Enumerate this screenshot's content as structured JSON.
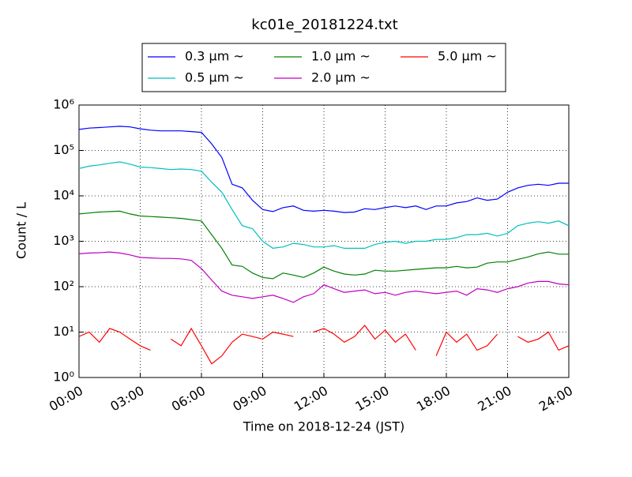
{
  "chart_data": {
    "type": "line",
    "title": "kc01e_20181224.txt",
    "xlabel": "Time on 2018-12-24 (JST)",
    "ylabel": "Count / L",
    "yscale": "log",
    "grid": true,
    "legend": "top",
    "xlim": [
      0,
      24
    ],
    "xticks": [
      {
        "value": 0,
        "label": "00:00"
      },
      {
        "value": 3,
        "label": "03:00"
      },
      {
        "value": 6,
        "label": "06:00"
      },
      {
        "value": 9,
        "label": "09:00"
      },
      {
        "value": 12,
        "label": "12:00"
      },
      {
        "value": 15,
        "label": "15:00"
      },
      {
        "value": 18,
        "label": "18:00"
      },
      {
        "value": 21,
        "label": "21:00"
      },
      {
        "value": 24,
        "label": "24:00"
      }
    ],
    "ylim": [
      1,
      1000000
    ],
    "yticks": [
      {
        "value": 1,
        "label": "10⁰"
      },
      {
        "value": 10,
        "label": "10¹"
      },
      {
        "value": 100,
        "label": "10²"
      },
      {
        "value": 1000,
        "label": "10³"
      },
      {
        "value": 10000,
        "label": "10⁴"
      },
      {
        "value": 100000,
        "label": "10⁵"
      },
      {
        "value": 1000000,
        "label": "10⁶"
      }
    ],
    "x": [
      0,
      0.5,
      1,
      1.5,
      2,
      2.5,
      3,
      3.5,
      4,
      4.5,
      5,
      5.5,
      6,
      6.5,
      7,
      7.5,
      8,
      8.5,
      9,
      9.5,
      10,
      10.5,
      11,
      11.5,
      12,
      12.5,
      13,
      13.5,
      14,
      14.5,
      15,
      15.5,
      16,
      16.5,
      17,
      17.5,
      18,
      18.5,
      19,
      19.5,
      20,
      20.5,
      21,
      21.5,
      22,
      22.5,
      23,
      23.5,
      24
    ],
    "series": [
      {
        "name": "0.3 μm ~",
        "color": "#0000ff",
        "values": [
          290000,
          310000,
          320000,
          330000,
          340000,
          330000,
          300000,
          280000,
          270000,
          270000,
          270000,
          260000,
          250000,
          140000,
          70000,
          18000,
          15000,
          8000,
          5000,
          4500,
          5500,
          6000,
          4800,
          4600,
          4800,
          4600,
          4300,
          4400,
          5200,
          5000,
          5500,
          6000,
          5500,
          6000,
          5000,
          6000,
          6000,
          7000,
          7500,
          9000,
          8000,
          8500,
          12000,
          15000,
          17000,
          18000,
          17000,
          19000,
          19000
        ]
      },
      {
        "name": "0.5 μm ~",
        "color": "#00bfbf",
        "values": [
          40000,
          45000,
          48000,
          52000,
          56000,
          50000,
          43000,
          42000,
          40000,
          38000,
          39000,
          38000,
          35000,
          20000,
          12000,
          5000,
          2200,
          1900,
          1000,
          700,
          750,
          900,
          850,
          750,
          750,
          800,
          700,
          700,
          700,
          850,
          950,
          1000,
          900,
          1000,
          1000,
          1100,
          1100,
          1200,
          1400,
          1400,
          1500,
          1300,
          1500,
          2200,
          2500,
          2700,
          2500,
          2800,
          2200
        ]
      },
      {
        "name": "1.0 μm ~",
        "color": "#008000",
        "values": [
          4000,
          4200,
          4400,
          4500,
          4600,
          4000,
          3600,
          3500,
          3400,
          3300,
          3200,
          3000,
          2800,
          1400,
          700,
          300,
          280,
          200,
          160,
          150,
          200,
          180,
          160,
          200,
          270,
          220,
          190,
          180,
          190,
          230,
          220,
          220,
          230,
          240,
          250,
          260,
          260,
          280,
          260,
          270,
          330,
          350,
          350,
          400,
          450,
          530,
          580,
          520,
          520
        ]
      },
      {
        "name": "2.0 μm ~",
        "color": "#bf00bf",
        "values": [
          530,
          550,
          560,
          580,
          550,
          500,
          440,
          430,
          420,
          420,
          410,
          380,
          250,
          140,
          80,
          65,
          60,
          55,
          60,
          65,
          55,
          45,
          60,
          70,
          110,
          90,
          75,
          80,
          85,
          70,
          75,
          65,
          75,
          80,
          75,
          70,
          75,
          80,
          65,
          90,
          85,
          75,
          90,
          100,
          120,
          130,
          130,
          115,
          110
        ]
      },
      {
        "name": "5.0 μm ~",
        "color": "#ff0000",
        "values": [
          8,
          10,
          6,
          12,
          10,
          7,
          5,
          4,
          null,
          7,
          5,
          12,
          5,
          2,
          3,
          6,
          9,
          8,
          7,
          10,
          9,
          8,
          null,
          10,
          12,
          9,
          6,
          8,
          14,
          7,
          11,
          6,
          9,
          4,
          null,
          3,
          10,
          6,
          9,
          4,
          5,
          9,
          null,
          8,
          6,
          7,
          10,
          4,
          5
        ]
      }
    ]
  }
}
